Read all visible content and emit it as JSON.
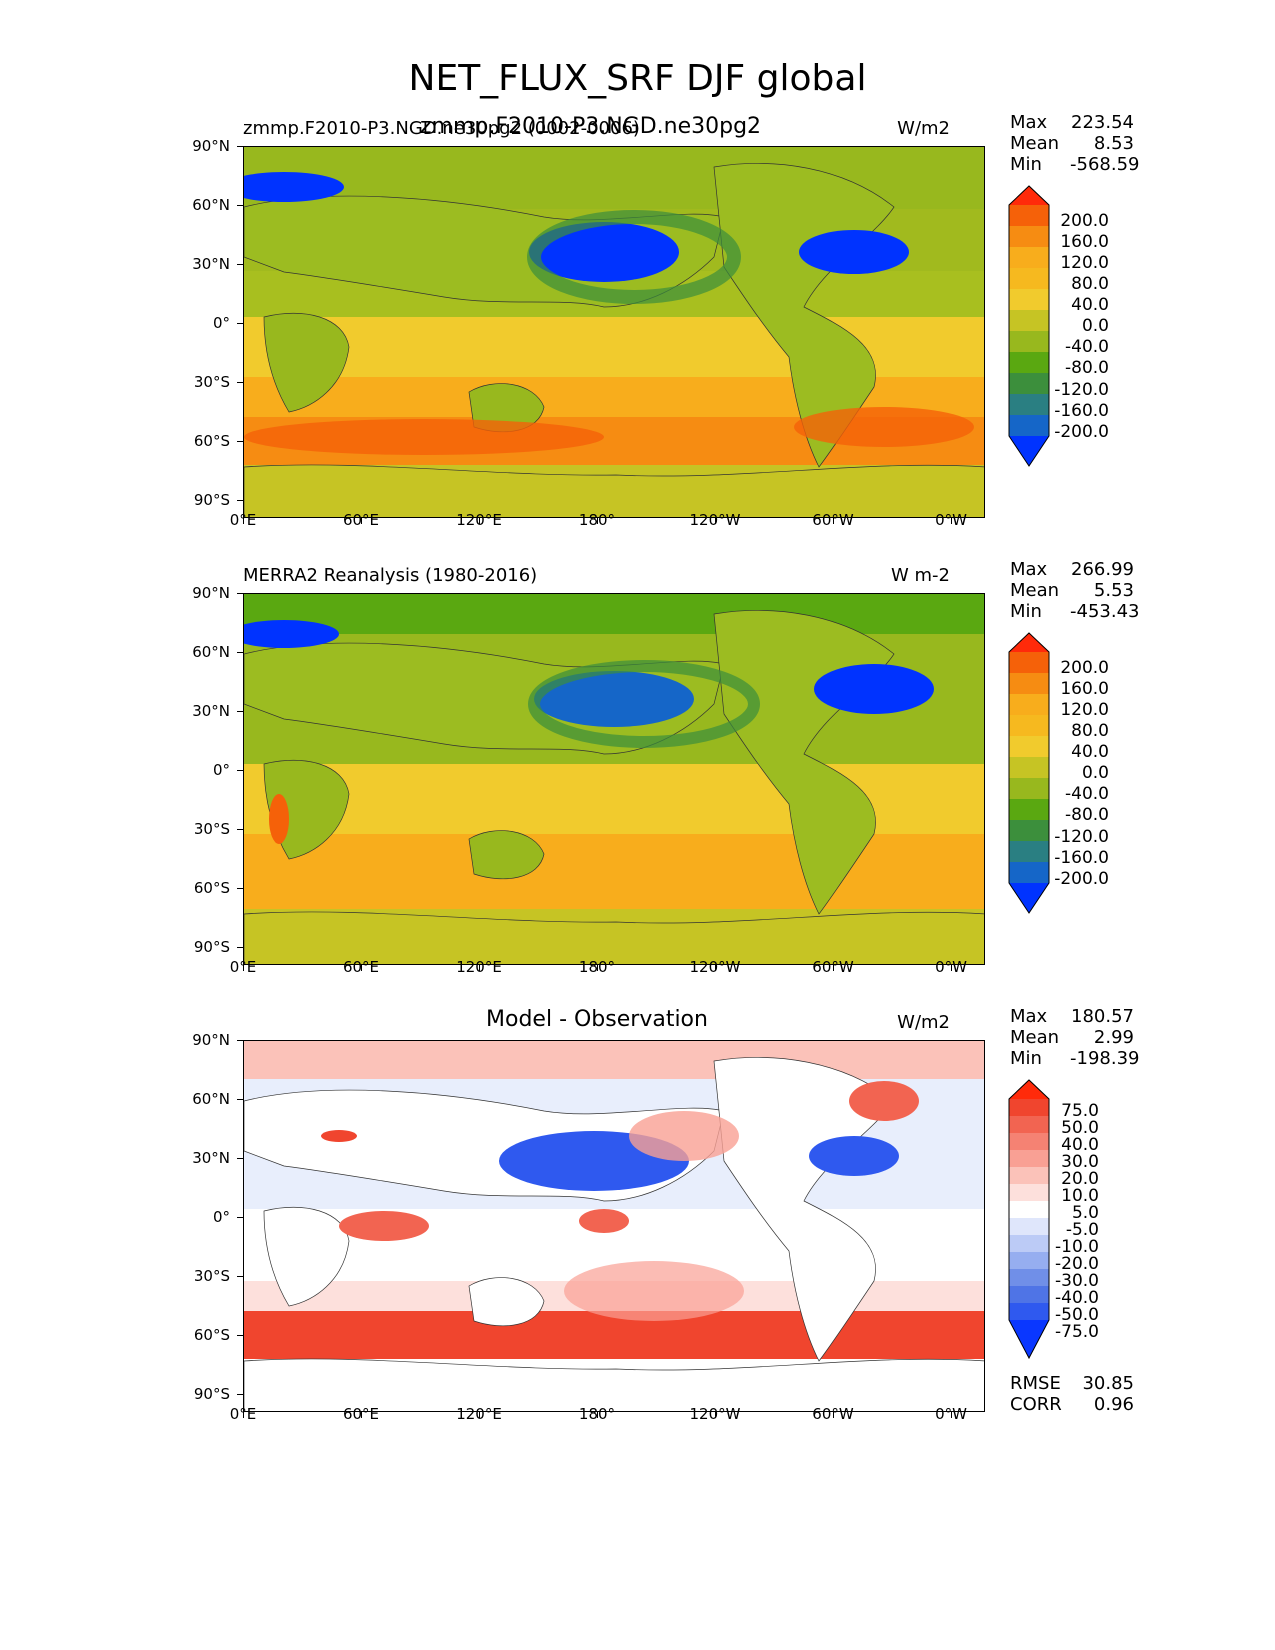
{
  "title": "NET_FLUX_SRF DJF global",
  "xticks": [
    "0°E",
    "60°E",
    "120°E",
    "180°",
    "120°W",
    "60°W",
    "0°W"
  ],
  "yticks": [
    "90°N",
    "60°N",
    "30°N",
    "0°",
    "30°S",
    "60°S",
    "90°S"
  ],
  "panels": [
    {
      "left_title": "zmmp.F2010-P3.NGD.ne30pg2 (0002-0006)",
      "center_title": "zmmp.F2010-P3.NGD.ne30pg2",
      "units": "W/m2",
      "stats": {
        "max_label": "Max",
        "max": "223.54",
        "mean_label": "Mean",
        "mean": "8.53",
        "min_label": "Min",
        "min": "-568.59"
      },
      "colorbar": [
        "200.0",
        "160.0",
        "120.0",
        "80.0",
        "40.0",
        "0.0",
        "-40.0",
        "-80.0",
        "-120.0",
        "-160.0",
        "-200.0"
      ]
    },
    {
      "left_title": "MERRA2 Reanalysis (1980-2016)",
      "center_title": "",
      "units": "W m-2",
      "stats": {
        "max_label": "Max",
        "max": "266.99",
        "mean_label": "Mean",
        "mean": "5.53",
        "min_label": "Min",
        "min": "-453.43"
      },
      "colorbar": [
        "200.0",
        "160.0",
        "120.0",
        "80.0",
        "40.0",
        "0.0",
        "-40.0",
        "-80.0",
        "-120.0",
        "-160.0",
        "-200.0"
      ]
    },
    {
      "left_title": "",
      "center_title": "Model - Observation",
      "units": "W/m2",
      "stats": {
        "max_label": "Max",
        "max": "180.57",
        "mean_label": "Mean",
        "mean": "2.99",
        "min_label": "Min",
        "min": "-198.39"
      },
      "colorbar": [
        "75.0",
        "50.0",
        "40.0",
        "30.0",
        "20.0",
        "10.0",
        "5.0",
        "-5.0",
        "-10.0",
        "-20.0",
        "-30.0",
        "-40.0",
        "-50.0",
        "-75.0"
      ],
      "rmse_label": "RMSE",
      "rmse": "30.85",
      "corr_label": "CORR",
      "corr": "0.96"
    }
  ],
  "chart_data": [
    {
      "type": "heatmap",
      "title": "zmmp.F2010-P3.NGD.ne30pg2 (0002-0006)",
      "units": "W/m2",
      "x_range_lon": [
        0,
        360
      ],
      "y_range_lat": [
        -90,
        90
      ],
      "color_levels": [
        -200,
        -160,
        -120,
        -80,
        -40,
        0,
        40,
        80,
        120,
        160,
        200
      ],
      "max": 223.54,
      "mean": 8.53,
      "min": -568.59
    },
    {
      "type": "heatmap",
      "title": "MERRA2 Reanalysis (1980-2016)",
      "units": "W m-2",
      "x_range_lon": [
        0,
        360
      ],
      "y_range_lat": [
        -90,
        90
      ],
      "color_levels": [
        -200,
        -160,
        -120,
        -80,
        -40,
        0,
        40,
        80,
        120,
        160,
        200
      ],
      "max": 266.99,
      "mean": 5.53,
      "min": -453.43
    },
    {
      "type": "heatmap",
      "title": "Model - Observation",
      "units": "W/m2",
      "x_range_lon": [
        0,
        360
      ],
      "y_range_lat": [
        -90,
        90
      ],
      "color_levels": [
        -75,
        -50,
        -40,
        -30,
        -20,
        -10,
        -5,
        5,
        10,
        20,
        30,
        40,
        50,
        75
      ],
      "max": 180.57,
      "mean": 2.99,
      "min": -198.39,
      "rmse": 30.85,
      "corr": 0.96
    }
  ],
  "colors": {
    "flux_scale": [
      "#0033ff",
      "#1566c8",
      "#2a7f82",
      "#3c8f3c",
      "#5aa811",
      "#98b81e",
      "#c6c424",
      "#f1cb2d",
      "#f8ad1c",
      "#f68c12",
      "#f56109",
      "#ff2a0a"
    ],
    "diff_scale": [
      "#0a37ff",
      "#2f59ef",
      "#4f74e6",
      "#708fe8",
      "#96aef0",
      "#bccbf6",
      "#dfe6fb",
      "#ffffff",
      "#fde0dc",
      "#fbc2b9",
      "#f9a094",
      "#f58273",
      "#f26451",
      "#f0452e",
      "#ff2a0a"
    ]
  }
}
